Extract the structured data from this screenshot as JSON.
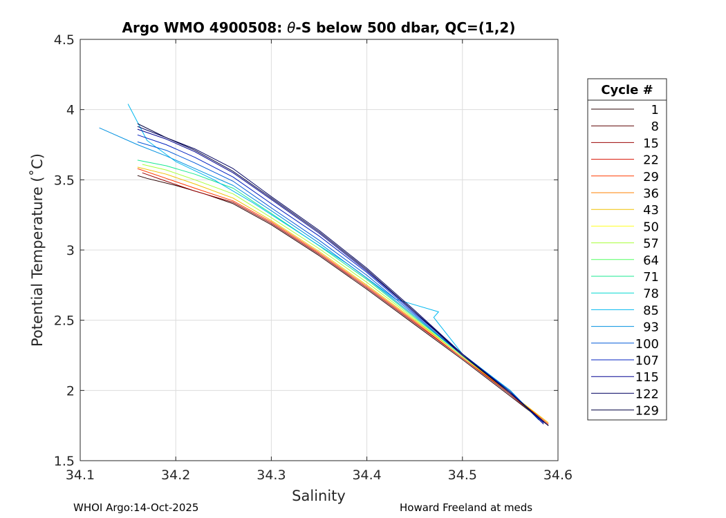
{
  "chart_data": {
    "type": "line",
    "title_main": "Argo WMO 4900508: ",
    "title_theta": "θ",
    "title_rest": "-S below 500 dbar,  QC=(1,2)",
    "xlabel": "Salinity",
    "ylabel": "Potential Temperature (˚C)",
    "xlim": [
      34.1,
      34.6
    ],
    "ylim": [
      1.5,
      4.5
    ],
    "xticks": [
      "34.1",
      "34.2",
      "34.3",
      "34.4",
      "34.5",
      "34.6"
    ],
    "yticks": [
      "1.5",
      "2",
      "2.5",
      "3",
      "3.5",
      "4",
      "4.5"
    ],
    "grid": true,
    "legend_title": "Cycle #",
    "legend_position": "outside-right",
    "legend_entries": [
      {
        "name": "1",
        "color": "#2a0000"
      },
      {
        "name": "8",
        "color": "#5a0000"
      },
      {
        "name": "15",
        "color": "#9a0000"
      },
      {
        "name": "22",
        "color": "#d81000"
      },
      {
        "name": "29",
        "color": "#ff3a00"
      },
      {
        "name": "36",
        "color": "#ff8000"
      },
      {
        "name": "43",
        "color": "#f0c000"
      },
      {
        "name": "50",
        "color": "#ffff20"
      },
      {
        "name": "57",
        "color": "#a8ff38"
      },
      {
        "name": "64",
        "color": "#50ff60"
      },
      {
        "name": "71",
        "color": "#18e890"
      },
      {
        "name": "78",
        "color": "#00d8d0"
      },
      {
        "name": "85",
        "color": "#00b8f0"
      },
      {
        "name": "93",
        "color": "#0090e0"
      },
      {
        "name": "100",
        "color": "#0058d8"
      },
      {
        "name": "107",
        "color": "#0020c0"
      },
      {
        "name": "115",
        "color": "#000090"
      },
      {
        "name": "122",
        "color": "#000060"
      },
      {
        "name": "129",
        "color": "#000040"
      }
    ],
    "series": [
      {
        "cycle": "1",
        "color": "#2a0000",
        "x": [
          34.59,
          34.55,
          34.5,
          34.45,
          34.4,
          34.35,
          34.3,
          34.26,
          34.23,
          34.2,
          34.17,
          34.16
        ],
        "y": [
          1.75,
          1.96,
          2.22,
          2.47,
          2.72,
          2.96,
          3.18,
          3.33,
          3.4,
          3.46,
          3.51,
          3.53
        ]
      },
      {
        "cycle": "15",
        "color": "#9a0000",
        "x": [
          34.59,
          34.55,
          34.5,
          34.45,
          34.4,
          34.35,
          34.3,
          34.26,
          34.22,
          34.19,
          34.165
        ],
        "y": [
          1.75,
          1.97,
          2.23,
          2.48,
          2.73,
          2.97,
          3.19,
          3.34,
          3.42,
          3.49,
          3.55
        ]
      },
      {
        "cycle": "29",
        "color": "#ff3a00",
        "x": [
          34.59,
          34.55,
          34.5,
          34.45,
          34.4,
          34.35,
          34.3,
          34.26,
          34.22,
          34.19,
          34.16
        ],
        "y": [
          1.76,
          1.98,
          2.23,
          2.49,
          2.74,
          2.98,
          3.2,
          3.35,
          3.44,
          3.51,
          3.58
        ]
      },
      {
        "cycle": "43",
        "color": "#f0c000",
        "x": [
          34.59,
          34.55,
          34.5,
          34.45,
          34.4,
          34.35,
          34.3,
          34.26,
          34.22,
          34.19,
          34.16
        ],
        "y": [
          1.77,
          1.98,
          2.24,
          2.5,
          2.75,
          2.99,
          3.21,
          3.37,
          3.47,
          3.54,
          3.59
        ]
      },
      {
        "cycle": "57",
        "color": "#a8ff38",
        "x": [
          34.58,
          34.55,
          34.5,
          34.45,
          34.4,
          34.35,
          34.3,
          34.26,
          34.22,
          34.19,
          34.165
        ],
        "y": [
          1.79,
          1.99,
          2.24,
          2.51,
          2.77,
          3.01,
          3.23,
          3.4,
          3.5,
          3.57,
          3.61
        ]
      },
      {
        "cycle": "71",
        "color": "#18e890",
        "x": [
          34.58,
          34.55,
          34.5,
          34.45,
          34.4,
          34.35,
          34.3,
          34.26,
          34.22,
          34.19,
          34.16
        ],
        "y": [
          1.79,
          2.0,
          2.25,
          2.52,
          2.79,
          3.03,
          3.26,
          3.44,
          3.54,
          3.6,
          3.64
        ]
      },
      {
        "cycle": "85",
        "color": "#00b8f0",
        "x": [
          34.58,
          34.55,
          34.5,
          34.47,
          34.475,
          34.43,
          34.38,
          34.33,
          34.28,
          34.24,
          34.2,
          34.17,
          34.15
        ],
        "y": [
          1.79,
          2.0,
          2.26,
          2.52,
          2.56,
          2.65,
          2.9,
          3.12,
          3.34,
          3.5,
          3.63,
          3.78,
          4.04
        ]
      },
      {
        "cycle": "93",
        "color": "#0090e0",
        "x": [
          34.58,
          34.55,
          34.5,
          34.45,
          34.4,
          34.35,
          34.3,
          34.26,
          34.22,
          34.19,
          34.16,
          34.12
        ],
        "y": [
          1.79,
          2.0,
          2.25,
          2.53,
          2.8,
          3.05,
          3.28,
          3.46,
          3.58,
          3.67,
          3.75,
          3.87
        ]
      },
      {
        "cycle": "100",
        "color": "#0058d8",
        "x": [
          34.585,
          34.55,
          34.5,
          34.45,
          34.4,
          34.35,
          34.3,
          34.26,
          34.22,
          34.19,
          34.16
        ],
        "y": [
          1.77,
          1.99,
          2.25,
          2.54,
          2.82,
          3.07,
          3.3,
          3.49,
          3.62,
          3.71,
          3.77
        ]
      },
      {
        "cycle": "107",
        "color": "#0020c0",
        "x": [
          34.585,
          34.55,
          34.5,
          34.45,
          34.4,
          34.35,
          34.3,
          34.26,
          34.22,
          34.19,
          34.16
        ],
        "y": [
          1.77,
          1.99,
          2.26,
          2.55,
          2.84,
          3.1,
          3.33,
          3.52,
          3.66,
          3.75,
          3.82
        ]
      },
      {
        "cycle": "115",
        "color": "#000090",
        "x": [
          34.585,
          34.55,
          34.5,
          34.45,
          34.4,
          34.35,
          34.3,
          34.26,
          34.22,
          34.19,
          34.16
        ],
        "y": [
          1.76,
          1.99,
          2.26,
          2.56,
          2.85,
          3.12,
          3.36,
          3.55,
          3.7,
          3.79,
          3.86
        ]
      },
      {
        "cycle": "122",
        "color": "#000060",
        "x": [
          34.59,
          34.55,
          34.5,
          34.45,
          34.4,
          34.35,
          34.3,
          34.26,
          34.22,
          34.19,
          34.16
        ],
        "y": [
          1.75,
          1.98,
          2.26,
          2.57,
          2.87,
          3.14,
          3.38,
          3.58,
          3.72,
          3.8,
          3.88
        ]
      },
      {
        "cycle": "129",
        "color": "#000040",
        "x": [
          34.59,
          34.55,
          34.5,
          34.45,
          34.4,
          34.35,
          34.3,
          34.26,
          34.22,
          34.19,
          34.16
        ],
        "y": [
          1.75,
          1.98,
          2.25,
          2.56,
          2.86,
          3.13,
          3.37,
          3.56,
          3.71,
          3.8,
          3.9
        ]
      }
    ]
  },
  "footer": {
    "left": "WHOI Argo:14-Oct-2025",
    "right": "Howard Freeland at meds"
  }
}
